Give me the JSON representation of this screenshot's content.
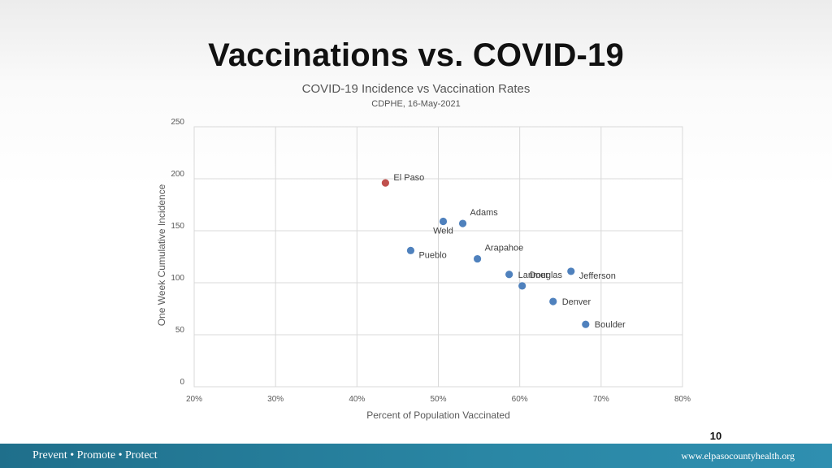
{
  "slide": {
    "title": "Vaccinations vs. COVID-19",
    "page_number": "10",
    "footer_left": "Prevent • Promote • Protect",
    "footer_right": "www.elpasocountyhealth.org",
    "footer_color": "#2a87a5"
  },
  "chart_data": {
    "type": "scatter",
    "title": "COVID-19 Incidence vs Vaccination Rates",
    "subtitle": "CDPHE, 16-May-2021",
    "xlabel": "Percent of Population Vaccinated",
    "ylabel": "One Week Cumulative Incidence",
    "xlim": [
      0.2,
      0.8
    ],
    "ylim": [
      0,
      250
    ],
    "x_ticks": [
      0.2,
      0.3,
      0.4,
      0.5,
      0.6,
      0.7,
      0.8
    ],
    "x_tick_labels": [
      "20%",
      "30%",
      "40%",
      "50%",
      "60%",
      "70%",
      "80%"
    ],
    "y_ticks": [
      0,
      50,
      100,
      150,
      200,
      250
    ],
    "y_tick_labels": [
      "0",
      "50",
      "100",
      "150",
      "200",
      "250"
    ],
    "grid": true,
    "default_color": "#4f81bd",
    "highlight_color": "#c0504d",
    "points": [
      {
        "label": "El Paso",
        "x": 0.435,
        "y": 196,
        "highlight": true,
        "label_pos": "right-up"
      },
      {
        "label": "Weld",
        "x": 0.506,
        "y": 159,
        "highlight": false,
        "label_pos": "below-left"
      },
      {
        "label": "Adams",
        "x": 0.53,
        "y": 157,
        "highlight": false,
        "label_pos": "above-right"
      },
      {
        "label": "Pueblo",
        "x": 0.466,
        "y": 131,
        "highlight": false,
        "label_pos": "right-down"
      },
      {
        "label": "Arapahoe",
        "x": 0.548,
        "y": 123,
        "highlight": false,
        "label_pos": "above-right"
      },
      {
        "label": "Larimer",
        "x": 0.587,
        "y": 108,
        "highlight": false,
        "label_pos": "right"
      },
      {
        "label": "Douglas",
        "x": 0.603,
        "y": 97,
        "highlight": false,
        "label_pos": "above-right"
      },
      {
        "label": "Jefferson",
        "x": 0.663,
        "y": 111,
        "highlight": false,
        "label_pos": "right-down"
      },
      {
        "label": "Denver",
        "x": 0.641,
        "y": 82,
        "highlight": false,
        "label_pos": "right"
      },
      {
        "label": "Boulder",
        "x": 0.681,
        "y": 60,
        "highlight": false,
        "label_pos": "right"
      }
    ]
  }
}
